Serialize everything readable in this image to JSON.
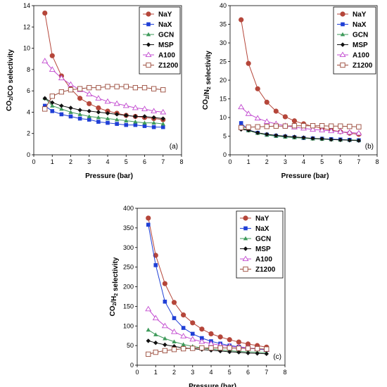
{
  "colors": {
    "NaY": "#b5463a",
    "NaX": "#1f3fd6",
    "GCN": "#3e9a5a",
    "MSP": "#111111",
    "A100": "#c24ad0",
    "Z1200": "#9a4a3a"
  },
  "chart_data": [
    {
      "type": "line",
      "panel_label": "(a)",
      "xlabel": "Pressure (bar)",
      "ylabel": "CO2/CO selectivity",
      "xlim": [
        0,
        8
      ],
      "ylim": [
        0,
        14
      ],
      "xticks": [
        0,
        1,
        2,
        3,
        4,
        5,
        6,
        7,
        8
      ],
      "yticks": [
        0,
        2,
        4,
        6,
        8,
        10,
        12,
        14
      ],
      "legend": "top-right",
      "x": [
        0.6,
        1.0,
        1.5,
        2.0,
        2.5,
        3.0,
        3.5,
        4.0,
        4.5,
        5.0,
        5.5,
        6.0,
        6.5,
        7.0
      ],
      "series": [
        {
          "name": "NaY",
          "marker": "circle",
          "values": [
            13.3,
            9.3,
            7.4,
            6.2,
            5.3,
            4.8,
            4.4,
            4.1,
            3.9,
            3.7,
            3.6,
            3.5,
            3.4,
            3.3
          ]
        },
        {
          "name": "NaX",
          "marker": "square",
          "values": [
            4.6,
            4.1,
            3.8,
            3.6,
            3.4,
            3.3,
            3.1,
            3.0,
            2.9,
            2.8,
            2.8,
            2.7,
            2.6,
            2.6
          ]
        },
        {
          "name": "GCN",
          "marker": "triangle",
          "values": [
            5.3,
            4.6,
            4.3,
            4.0,
            3.8,
            3.6,
            3.5,
            3.4,
            3.3,
            3.2,
            3.1,
            3.0,
            3.0,
            2.9
          ]
        },
        {
          "name": "MSP",
          "marker": "diamond",
          "values": [
            5.3,
            4.9,
            4.6,
            4.4,
            4.2,
            4.1,
            4.0,
            3.9,
            3.8,
            3.7,
            3.6,
            3.6,
            3.5,
            3.4
          ]
        },
        {
          "name": "A100",
          "marker": "triangle-open",
          "values": [
            8.8,
            8.0,
            7.2,
            6.6,
            6.1,
            5.7,
            5.3,
            5.0,
            4.8,
            4.6,
            4.4,
            4.3,
            4.1,
            4.0
          ]
        },
        {
          "name": "Z1200",
          "marker": "square-open",
          "values": [
            4.3,
            5.5,
            5.9,
            6.1,
            6.2,
            6.3,
            6.3,
            6.4,
            6.4,
            6.4,
            6.3,
            6.3,
            6.2,
            6.1
          ]
        }
      ]
    },
    {
      "type": "line",
      "panel_label": "(b)",
      "xlabel": "Pressure (bar)",
      "ylabel": "CO2/N2 selectivity",
      "xlim": [
        0,
        8
      ],
      "ylim": [
        0,
        40
      ],
      "xticks": [
        0,
        1,
        2,
        3,
        4,
        5,
        6,
        7,
        8
      ],
      "yticks": [
        0,
        5,
        10,
        15,
        20,
        25,
        30,
        35,
        40
      ],
      "legend": "top-right",
      "x": [
        0.6,
        1.0,
        1.5,
        2.0,
        2.5,
        3.0,
        3.5,
        4.0,
        4.5,
        5.0,
        5.5,
        6.0,
        6.5,
        7.0
      ],
      "series": [
        {
          "name": "NaY",
          "marker": "circle",
          "values": [
            36.2,
            24.5,
            17.7,
            14.1,
            11.7,
            10.2,
            9.1,
            8.3,
            7.6,
            7.1,
            6.6,
            6.2,
            5.8,
            5.5
          ]
        },
        {
          "name": "NaX",
          "marker": "square",
          "values": [
            8.5,
            6.7,
            5.9,
            5.4,
            5.1,
            4.9,
            4.7,
            4.5,
            4.4,
            4.3,
            4.2,
            4.1,
            4.0,
            3.9
          ]
        },
        {
          "name": "GCN",
          "marker": "triangle",
          "values": [
            7.3,
            6.5,
            5.8,
            5.3,
            5.0,
            4.8,
            4.6,
            4.5,
            4.3,
            4.2,
            4.1,
            4.0,
            4.0,
            3.9
          ]
        },
        {
          "name": "MSP",
          "marker": "diamond",
          "values": [
            6.8,
            6.6,
            5.9,
            5.5,
            5.2,
            5.0,
            4.8,
            4.6,
            4.4,
            4.3,
            4.1,
            4.0,
            3.9,
            3.8
          ]
        },
        {
          "name": "A100",
          "marker": "triangle-open",
          "values": [
            12.8,
            11.0,
            9.8,
            8.9,
            8.3,
            7.8,
            7.4,
            7.1,
            6.8,
            6.6,
            6.4,
            6.2,
            6.0,
            5.8
          ]
        },
        {
          "name": "Z1200",
          "marker": "square-open",
          "values": [
            7.3,
            7.4,
            7.5,
            7.6,
            7.7,
            7.7,
            7.8,
            7.8,
            7.8,
            7.8,
            7.7,
            7.7,
            7.6,
            7.5
          ]
        }
      ]
    },
    {
      "type": "line",
      "panel_label": "(c)",
      "xlabel": "Pressure (bar)",
      "ylabel": "CO2/H2 selectivity",
      "xlim": [
        0,
        8
      ],
      "ylim": [
        0,
        400
      ],
      "xticks": [
        0,
        1,
        2,
        3,
        4,
        5,
        6,
        7,
        8
      ],
      "yticks": [
        0,
        50,
        100,
        150,
        200,
        250,
        300,
        350,
        400
      ],
      "legend": "top-right",
      "x": [
        0.6,
        1.0,
        1.5,
        2.0,
        2.5,
        3.0,
        3.5,
        4.0,
        4.5,
        5.0,
        5.5,
        6.0,
        6.5,
        7.0
      ],
      "series": [
        {
          "name": "NaY",
          "marker": "circle",
          "values": [
            375,
            280,
            208,
            160,
            128,
            108,
            92,
            80,
            72,
            65,
            59,
            54,
            50,
            46
          ]
        },
        {
          "name": "NaX",
          "marker": "square",
          "values": [
            358,
            255,
            162,
            120,
            95,
            80,
            69,
            61,
            55,
            50,
            47,
            44,
            41,
            39
          ]
        },
        {
          "name": "GCN",
          "marker": "triangle",
          "values": [
            90,
            78,
            68,
            60,
            53,
            48,
            44,
            41,
            39,
            37,
            35,
            34,
            33,
            32
          ]
        },
        {
          "name": "MSP",
          "marker": "diamond",
          "values": [
            62,
            57,
            52,
            48,
            44,
            42,
            40,
            38,
            36,
            34,
            33,
            31,
            30,
            29
          ]
        },
        {
          "name": "A100",
          "marker": "triangle-open",
          "values": [
            143,
            120,
            100,
            85,
            74,
            66,
            60,
            55,
            51,
            48,
            46,
            44,
            42,
            40
          ]
        },
        {
          "name": "Z1200",
          "marker": "square-open",
          "values": [
            28,
            33,
            37,
            40,
            42,
            43,
            44,
            44,
            44,
            44,
            43,
            43,
            42,
            41
          ]
        }
      ]
    }
  ]
}
